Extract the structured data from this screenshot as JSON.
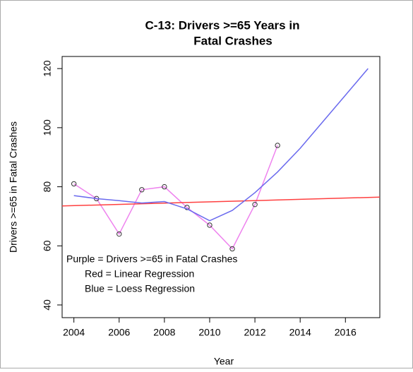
{
  "chart_data": {
    "type": "line",
    "title": [
      "C-13: Drivers >=65 Years in",
      "Fatal Crashes"
    ],
    "x_label": "Year",
    "y_label": "Drivers >=65 in Fatal Crashes",
    "annotations": [
      "Purple = Drivers >=65 in Fatal Crashes",
      "Red = Linear Regression",
      "Blue = Loess Regression"
    ],
    "xlim": [
      2003.48,
      2017.52
    ],
    "ylim": [
      35.7,
      124.1
    ],
    "xticks": [
      2004,
      2006,
      2008,
      2010,
      2012,
      2014,
      2016
    ],
    "yticks": [
      40,
      60,
      80,
      100,
      120
    ],
    "series": [
      {
        "name": "Drivers >=65 in Fatal Crashes",
        "color": "#ee82ee",
        "markers": true,
        "x": [
          2004,
          2005,
          2006,
          2007,
          2008,
          2009,
          2010,
          2011,
          2012,
          2013
        ],
        "values": [
          81,
          76,
          64,
          79,
          80,
          73,
          67,
          59,
          74,
          94
        ]
      },
      {
        "name": "Linear Regression",
        "color": "#ff4040",
        "markers": false,
        "x": [
          2003.48,
          2017.52
        ],
        "values": [
          73.5,
          76.5
        ]
      },
      {
        "name": "Loess Regression",
        "color": "#6a6aee",
        "markers": false,
        "x": [
          2004,
          2005,
          2006,
          2007,
          2008,
          2009,
          2010,
          2011,
          2012,
          2013,
          2014,
          2015,
          2016,
          2017
        ],
        "values": [
          77,
          76,
          75.3,
          74.5,
          75,
          72.5,
          68.5,
          72,
          78,
          85,
          93,
          102,
          111,
          120
        ]
      }
    ]
  }
}
